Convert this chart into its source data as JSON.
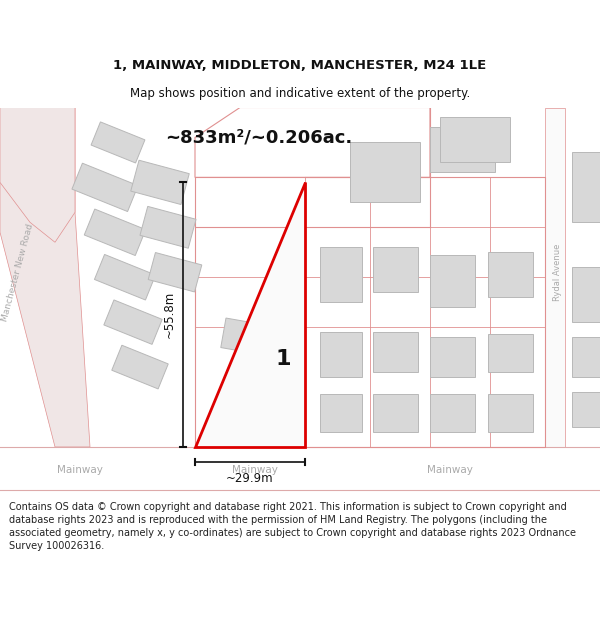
{
  "title_line1": "1, MAINWAY, MIDDLETON, MANCHESTER, M24 1LE",
  "title_line2": "Map shows position and indicative extent of the property.",
  "area_text": "~833m²/~0.206ac.",
  "dim_width": "~29.9m",
  "dim_height": "~55.8m",
  "plot_number": "1",
  "footer_text": "Contains OS data © Crown copyright and database right 2021. This information is subject to Crown copyright and database rights 2023 and is reproduced with the permission of HM Land Registry. The polygons (including the associated geometry, namely x, y co-ordinates) are subject to Crown copyright and database rights 2023 Ordnance Survey 100026316.",
  "map_bg": "#f7f5f2",
  "road_fill": "#f0e6e6",
  "road_edge": "#e09090",
  "road_fill2": "#f5eded",
  "building_fill": "#d8d8d8",
  "building_edge": "#b8b8b8",
  "plot_fill": "#fafafa",
  "plot_stroke": "#dd0000",
  "dim_color": "#111111",
  "text_color": "#111111",
  "road_label_color": "#aaaaaa",
  "footer_color": "#222222",
  "white": "#ffffff"
}
